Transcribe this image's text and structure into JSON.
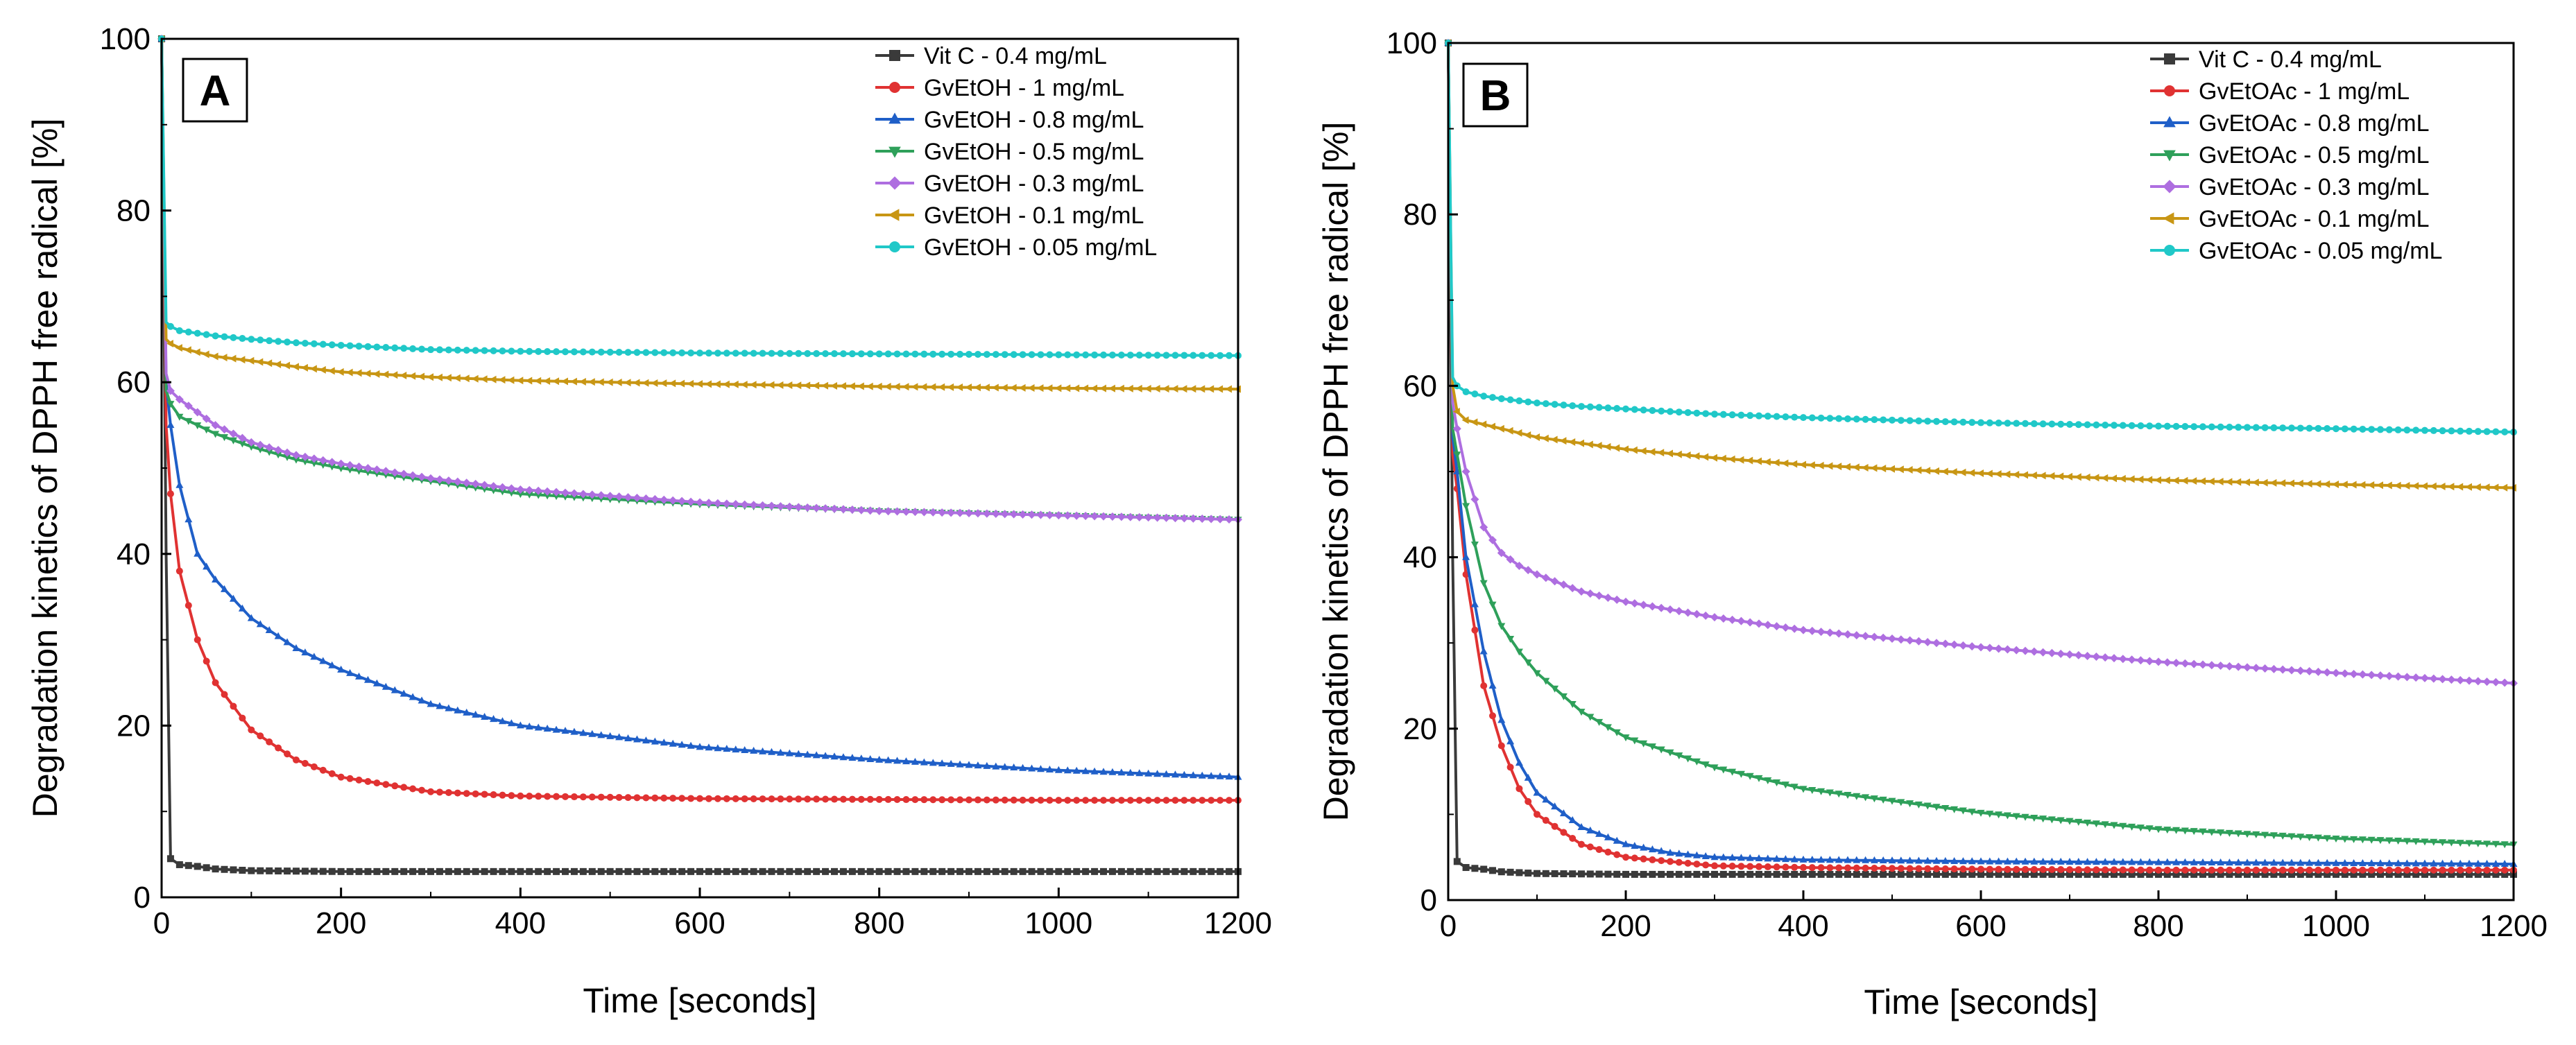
{
  "figure": {
    "panels": [
      "A",
      "B"
    ]
  },
  "colors": {
    "vitc": "#3a3a3a",
    "c1": "#e03232",
    "c08": "#1f5fc8",
    "c05": "#2ea05a",
    "c03": "#ae6ee0",
    "c01": "#c89614",
    "c005": "#20c8c8"
  },
  "chart_data": [
    {
      "type": "line",
      "panel": "A",
      "title": "",
      "xlabel": "Time [seconds]",
      "ylabel": "Degradation kinetics of DPPH free radical [%]",
      "xlim": [
        0,
        1200
      ],
      "ylim": [
        0,
        100
      ],
      "xticks": [
        "0",
        "200",
        "400",
        "600",
        "800",
        "1000",
        "1200"
      ],
      "yticks": [
        "0",
        "20",
        "40",
        "60",
        "80",
        "100"
      ],
      "legend_position": "top-right",
      "series": [
        {
          "name": "Vit C - 0.4 mg/mL",
          "color_key": "vitc",
          "x": [
            0,
            5,
            10,
            20,
            40,
            60,
            100,
            200,
            400,
            600,
            800,
            1000,
            1200
          ],
          "y": [
            100,
            40,
            4.5,
            3.8,
            3.6,
            3.3,
            3.1,
            3.0,
            3.0,
            3.0,
            3.0,
            3.0,
            3.0
          ]
        },
        {
          "name": "GvEtOH - 1 mg/mL",
          "color_key": "c1",
          "x": [
            0,
            5,
            10,
            20,
            40,
            60,
            100,
            150,
            200,
            300,
            400,
            600,
            800,
            1000,
            1200
          ],
          "y": [
            100,
            55,
            47,
            38,
            30,
            25,
            19.5,
            16,
            14,
            12.3,
            11.8,
            11.5,
            11.4,
            11.3,
            11.3
          ]
        },
        {
          "name": "GvEtOH - 0.8 mg/mL",
          "color_key": "c08",
          "x": [
            0,
            5,
            10,
            20,
            40,
            60,
            100,
            150,
            200,
            300,
            400,
            600,
            800,
            1000,
            1200
          ],
          "y": [
            100,
            60,
            55,
            48,
            40,
            37,
            32.5,
            29,
            26.5,
            22.5,
            20,
            17.5,
            16,
            14.8,
            14
          ]
        },
        {
          "name": "GvEtOH - 0.5 mg/mL",
          "color_key": "c05",
          "x": [
            0,
            5,
            10,
            20,
            40,
            60,
            100,
            150,
            200,
            300,
            400,
            600,
            800,
            1000,
            1200
          ],
          "y": [
            100,
            59,
            57.5,
            56,
            55,
            54,
            52.5,
            51,
            50,
            48.5,
            47,
            45.8,
            45,
            44.5,
            44
          ]
        },
        {
          "name": "GvEtOH - 0.3 mg/mL",
          "color_key": "c03",
          "x": [
            0,
            5,
            10,
            20,
            40,
            60,
            100,
            150,
            200,
            300,
            400,
            600,
            800,
            1000,
            1200
          ],
          "y": [
            100,
            61,
            59,
            58,
            56.5,
            55,
            53,
            51.5,
            50.5,
            48.8,
            47.5,
            46,
            45,
            44.5,
            44
          ]
        },
        {
          "name": "GvEtOH - 0.1 mg/mL",
          "color_key": "c01",
          "x": [
            0,
            5,
            10,
            20,
            40,
            60,
            100,
            150,
            200,
            300,
            400,
            600,
            800,
            1000,
            1200
          ],
          "y": [
            100,
            65,
            64.5,
            64,
            63.5,
            63,
            62.5,
            61.8,
            61.2,
            60.6,
            60.2,
            59.8,
            59.5,
            59.3,
            59.2
          ]
        },
        {
          "name": "GvEtOH - 0.05 mg/mL",
          "color_key": "c005",
          "x": [
            0,
            5,
            10,
            20,
            40,
            60,
            100,
            150,
            200,
            300,
            400,
            600,
            800,
            1000,
            1200
          ],
          "y": [
            100,
            67,
            66.5,
            66,
            65.7,
            65.4,
            65,
            64.6,
            64.3,
            63.8,
            63.6,
            63.4,
            63.3,
            63.2,
            63.1
          ]
        }
      ]
    },
    {
      "type": "line",
      "panel": "B",
      "title": "",
      "xlabel": "Time [seconds]",
      "ylabel": "Degradation kinetics of DPPH free radical [%]",
      "xlim": [
        0,
        1200
      ],
      "ylim": [
        0,
        100
      ],
      "xticks": [
        "0",
        "200",
        "400",
        "600",
        "800",
        "1000",
        "1200"
      ],
      "yticks": [
        "0",
        "20",
        "40",
        "60",
        "80",
        "100"
      ],
      "legend_position": "top-right",
      "series": [
        {
          "name": "Vit C - 0.4 mg/mL",
          "color_key": "vitc",
          "x": [
            0,
            5,
            10,
            20,
            40,
            60,
            100,
            200,
            400,
            600,
            800,
            1000,
            1200
          ],
          "y": [
            100,
            40,
            4.5,
            3.8,
            3.6,
            3.3,
            3.1,
            3.0,
            3.0,
            3.0,
            3.0,
            3.0,
            3.0
          ]
        },
        {
          "name": "GvEtOAc - 1 mg/mL",
          "color_key": "c1",
          "x": [
            0,
            5,
            10,
            20,
            40,
            60,
            80,
            100,
            150,
            200,
            250,
            300,
            400,
            600,
            800,
            1000,
            1200
          ],
          "y": [
            100,
            52,
            48,
            38,
            25,
            18,
            13,
            10,
            6.5,
            5,
            4.5,
            4,
            3.8,
            3.6,
            3.5,
            3.5,
            3.5
          ]
        },
        {
          "name": "GvEtOAc - 0.8 mg/mL",
          "color_key": "c08",
          "x": [
            0,
            5,
            10,
            20,
            40,
            60,
            80,
            100,
            150,
            200,
            250,
            300,
            400,
            600,
            800,
            1000,
            1200
          ],
          "y": [
            100,
            54,
            50,
            40,
            29,
            21,
            16,
            12.5,
            8.5,
            6.5,
            5.5,
            5,
            4.7,
            4.5,
            4.4,
            4.3,
            4.2
          ]
        },
        {
          "name": "GvEtOAc - 0.5 mg/mL",
          "color_key": "c05",
          "x": [
            0,
            5,
            10,
            20,
            40,
            60,
            80,
            100,
            150,
            200,
            300,
            400,
            600,
            800,
            1000,
            1200
          ],
          "y": [
            100,
            55,
            52,
            46,
            37,
            32,
            29,
            26.5,
            22,
            19,
            15.5,
            13,
            10.2,
            8.3,
            7.2,
            6.5
          ]
        },
        {
          "name": "GvEtOAc - 0.3 mg/mL",
          "color_key": "c03",
          "x": [
            0,
            5,
            10,
            20,
            40,
            60,
            80,
            100,
            150,
            200,
            300,
            400,
            600,
            800,
            1000,
            1200
          ],
          "y": [
            100,
            58,
            55,
            50,
            43.5,
            40.5,
            39,
            38,
            36,
            34.8,
            33,
            31.5,
            29.5,
            27.8,
            26.5,
            25.3
          ]
        },
        {
          "name": "GvEtOAc - 0.1 mg/mL",
          "color_key": "c01",
          "x": [
            0,
            5,
            10,
            20,
            40,
            60,
            80,
            100,
            150,
            200,
            300,
            400,
            600,
            800,
            1000,
            1200
          ],
          "y": [
            100,
            60,
            57,
            56,
            55.5,
            55,
            54.5,
            54,
            53.3,
            52.6,
            51.6,
            50.8,
            49.8,
            49,
            48.5,
            48.1
          ]
        },
        {
          "name": "GvEtOAc - 0.05 mg/mL",
          "color_key": "c005",
          "x": [
            0,
            5,
            10,
            20,
            40,
            60,
            100,
            150,
            200,
            300,
            400,
            600,
            800,
            1000,
            1200
          ],
          "y": [
            100,
            61,
            60,
            59.3,
            58.8,
            58.5,
            58,
            57.6,
            57.3,
            56.7,
            56.3,
            55.7,
            55.3,
            55,
            54.6
          ]
        }
      ]
    }
  ]
}
